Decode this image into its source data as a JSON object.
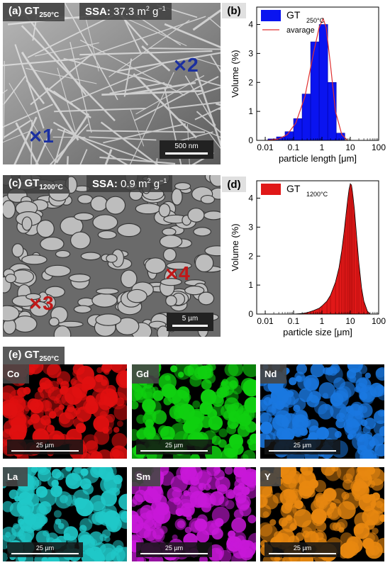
{
  "panel_a": {
    "letter": "(a)",
    "sample": "GT",
    "temp": "250°C",
    "ssa_label": "SSA:",
    "ssa_value": "37.3 m",
    "ssa_exp": "2",
    "ssa_unit": " g",
    "ssa_unit_exp": "−1",
    "scalebar": "500 nm",
    "markers": [
      "1",
      "2"
    ],
    "marker_color": "#1a2fa0"
  },
  "panel_c": {
    "letter": "(c)",
    "sample": "GT",
    "temp": "1200°C",
    "ssa_label": "SSA:",
    "ssa_value": "0.9 m",
    "ssa_exp": "2",
    "ssa_unit": " g",
    "ssa_unit_exp": "−1",
    "scalebar": "5 µm",
    "markers": [
      "3",
      "4"
    ],
    "marker_color": "#c01818"
  },
  "panel_e": {
    "letter": "(e)",
    "sample": "GT",
    "temp": "250°C",
    "scalebar": "25 µm",
    "maps": [
      {
        "element": "Co",
        "color": "#e01010"
      },
      {
        "element": "Gd",
        "color": "#10d010"
      },
      {
        "element": "Nd",
        "color": "#1a78e0"
      },
      {
        "element": "La",
        "color": "#20c8c8"
      },
      {
        "element": "Sm",
        "color": "#c818d8"
      },
      {
        "element": "Y",
        "color": "#e88810"
      }
    ]
  },
  "chart_data": [
    {
      "panel": "(b)",
      "type": "bar",
      "xscale": "log",
      "xlim": [
        0.005,
        100
      ],
      "ylim": [
        0,
        4.6
      ],
      "xticks": [
        "0.01",
        "0.1",
        "1",
        "10",
        "100"
      ],
      "yticks": [
        "0",
        "1",
        "2",
        "3",
        "4"
      ],
      "xlabel": "particle length [μm]",
      "ylabel": "Volume (%)",
      "legend": {
        "bars": "GT",
        "bars_sub": "250°C",
        "line": "avarage"
      },
      "bar_color": "#0a14f0",
      "line_color": "#e03030",
      "bins": [
        {
          "from": 0.0125,
          "to": 0.025,
          "value": 0.05
        },
        {
          "from": 0.025,
          "to": 0.05,
          "value": 0.12
        },
        {
          "from": 0.05,
          "to": 0.1,
          "value": 0.3
        },
        {
          "from": 0.1,
          "to": 0.2,
          "value": 0.75
        },
        {
          "from": 0.2,
          "to": 0.4,
          "value": 1.6
        },
        {
          "from": 0.4,
          "to": 0.8,
          "value": 3.4
        },
        {
          "from": 0.8,
          "to": 1.6,
          "value": 4.0
        },
        {
          "from": 1.6,
          "to": 3.2,
          "value": 2.0
        },
        {
          "from": 3.2,
          "to": 6.4,
          "value": 0.25
        }
      ],
      "line": {
        "x": [
          0.012,
          0.03,
          0.06,
          0.12,
          0.25,
          0.5,
          0.8,
          1.1,
          1.4,
          2.0,
          3.0,
          5.0,
          8.0
        ],
        "y": [
          0.0,
          0.05,
          0.2,
          0.6,
          1.5,
          3.0,
          3.9,
          4.2,
          3.9,
          2.6,
          1.0,
          0.2,
          0.0
        ]
      }
    },
    {
      "panel": "(d)",
      "type": "bar",
      "xscale": "log",
      "xlim": [
        0.005,
        100
      ],
      "ylim": [
        0,
        4.6
      ],
      "xticks": [
        "0.01",
        "0.1",
        "1",
        "10",
        "100"
      ],
      "yticks": [
        "0",
        "1",
        "2",
        "3",
        "4"
      ],
      "xlabel": "particle size [μm]",
      "ylabel": "Volume (%)",
      "legend": {
        "bars": "GT",
        "bars_sub": "1200°C"
      },
      "bar_color": "#e01818",
      "series": {
        "x": [
          0.1,
          0.2,
          0.3,
          0.5,
          0.8,
          1.0,
          1.5,
          2.0,
          3.0,
          4.0,
          5.0,
          6.0,
          7.0,
          8.0,
          9.0,
          10.0,
          11.0,
          12.0,
          14.0,
          17.0,
          20.0,
          25.0,
          30.0,
          40.0,
          50.0
        ],
        "y": [
          0.0,
          0.02,
          0.05,
          0.12,
          0.2,
          0.28,
          0.45,
          0.65,
          1.1,
          1.6,
          2.2,
          2.8,
          3.4,
          3.9,
          4.3,
          4.5,
          4.45,
          4.2,
          3.6,
          2.6,
          1.8,
          0.9,
          0.45,
          0.1,
          0.0
        ]
      }
    }
  ]
}
